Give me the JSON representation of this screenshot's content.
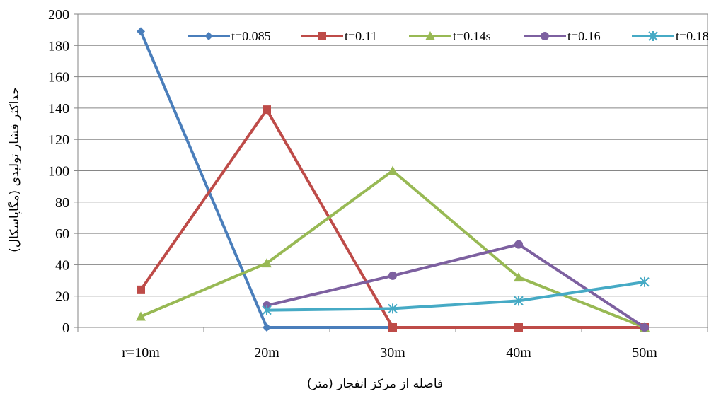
{
  "chart_data": {
    "type": "line",
    "categories": [
      "r=10m",
      "20m",
      "30m",
      "40m",
      "50m"
    ],
    "xlabel": "فاصله از مرکز انفجار (متر)",
    "ylabel": "حداکثر فشار تولیدی (مگاپاسکال)",
    "ylim": [
      0,
      200
    ],
    "yticks": [
      0,
      20,
      40,
      60,
      80,
      100,
      120,
      140,
      160,
      180,
      200
    ],
    "grid": true,
    "legend": "top",
    "series": [
      {
        "name": "t=0.085",
        "color": "#4a7ebb",
        "marker": "diamond",
        "values": [
          189,
          0,
          0,
          null,
          null
        ]
      },
      {
        "name": "t=0.11",
        "color": "#be4b48",
        "marker": "square",
        "values": [
          24,
          139,
          0,
          0,
          0
        ]
      },
      {
        "name": "t=0.14s",
        "color": "#98b954",
        "marker": "triangle",
        "values": [
          7,
          41,
          100,
          32,
          0
        ]
      },
      {
        "name": "t=0.16",
        "color": "#7d60a0",
        "marker": "circle",
        "values": [
          null,
          14,
          33,
          53,
          0
        ]
      },
      {
        "name": "t=0.18",
        "color": "#46aac5",
        "marker": "star",
        "values": [
          null,
          11,
          12,
          17,
          29
        ]
      }
    ]
  }
}
